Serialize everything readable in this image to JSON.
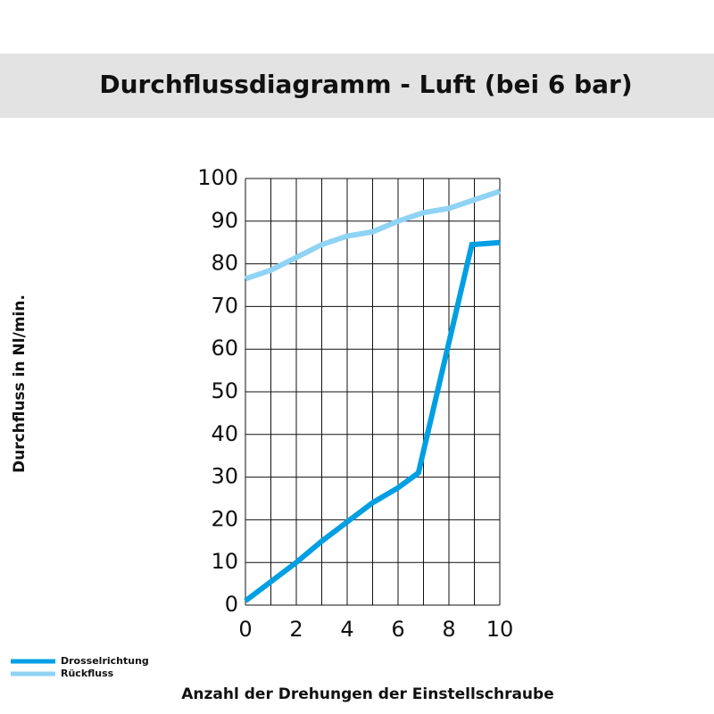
{
  "chart_data": {
    "type": "line",
    "title": "Durchflussdiagramm - Luft (bei 6 bar)",
    "x_label": "Anzahl der Drehungen der Einstellschraube",
    "y_label": "Durchfluss in Nl/min.",
    "xlim": [
      0,
      10
    ],
    "ylim": [
      0,
      100
    ],
    "xticks": [
      0,
      2,
      4,
      6,
      8,
      10
    ],
    "xgrid": [
      0,
      1,
      2,
      3,
      4,
      5,
      6,
      7,
      8,
      9,
      10
    ],
    "yticks": [
      0,
      10,
      20,
      30,
      40,
      50,
      60,
      70,
      80,
      90,
      100
    ],
    "grid": true,
    "legend": "bottom-left",
    "series": [
      {
        "name": "Drosselrichtung",
        "color": "#009fe3",
        "x": [
          0,
          1,
          2,
          3,
          4,
          5,
          6,
          6.8,
          8.9,
          10
        ],
        "values": [
          1,
          5.5,
          10,
          15,
          19.5,
          24,
          27.5,
          31,
          84.5,
          85
        ]
      },
      {
        "name": "Rückfluss",
        "color": "#8fd3f5",
        "x": [
          0,
          1,
          2,
          3,
          4,
          5,
          6,
          7,
          8,
          9,
          10
        ],
        "values": [
          76.5,
          78.5,
          81.5,
          84.5,
          86.5,
          87.5,
          90,
          92,
          93,
          95,
          97
        ]
      }
    ]
  }
}
